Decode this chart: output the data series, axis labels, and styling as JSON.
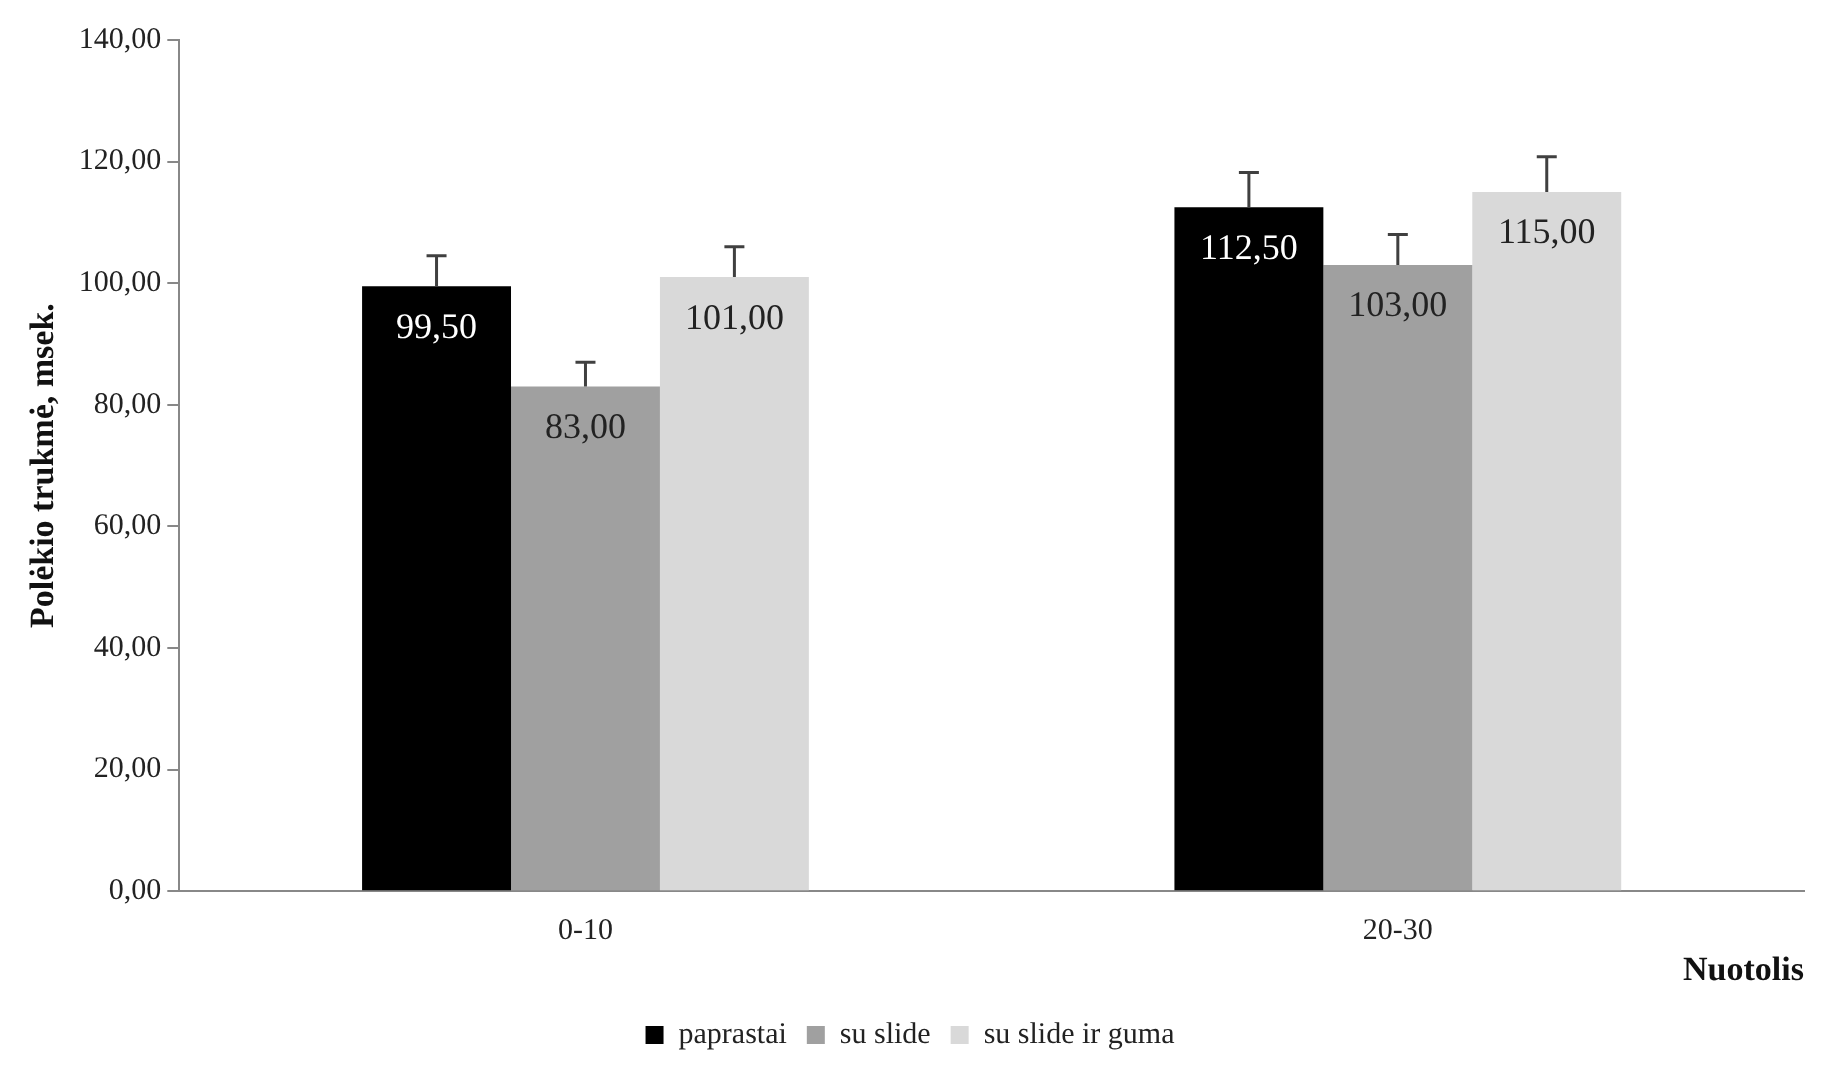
{
  "chart_data": {
    "type": "bar",
    "ylabel": "Polėkio trukmė, msek.",
    "xlabel": "Nuotolis",
    "categories": [
      "0-10",
      "20-30"
    ],
    "series": [
      {
        "name": "paprastai",
        "color": "#000000",
        "values": [
          99.5,
          112.5
        ],
        "value_labels": [
          "99,50",
          "112,50"
        ],
        "errors": [
          [
            99.5,
            104.5
          ],
          [
            112.5,
            118.2
          ]
        ]
      },
      {
        "name": "su slide",
        "color": "#a0a0a0",
        "values": [
          83,
          103
        ],
        "value_labels": [
          "83,00",
          "103,00"
        ],
        "errors": [
          [
            83,
            87
          ],
          [
            103,
            108
          ]
        ]
      },
      {
        "name": "su slide ir guma",
        "color": "#d9d9d9",
        "values": [
          101,
          115
        ],
        "value_labels": [
          "101,00",
          "115,00"
        ],
        "errors": [
          [
            101,
            106
          ],
          [
            115,
            120.8
          ]
        ]
      }
    ],
    "ylim": [
      0,
      140
    ],
    "yticks": [
      {
        "value": 0,
        "label": "0,00"
      },
      {
        "value": 20,
        "label": "20,00"
      },
      {
        "value": 40,
        "label": "40,00"
      },
      {
        "value": 60,
        "label": "60,00"
      },
      {
        "value": 80,
        "label": "80,00"
      },
      {
        "value": 100,
        "label": "100,00"
      },
      {
        "value": 120,
        "label": "120,00"
      },
      {
        "value": 140,
        "label": "140,00"
      }
    ],
    "grid": false,
    "legend": "bottom"
  }
}
